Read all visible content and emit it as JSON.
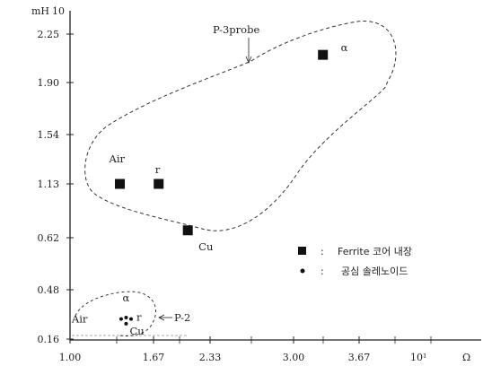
{
  "chart_data": {
    "type": "scatter",
    "y_unit": "mH",
    "x_unit": "Ω",
    "y_exponent_label": "10",
    "x_exponent_label": "10¹",
    "y_ticks": [
      "0.16",
      "0.48",
      "0.62",
      "1.13",
      "1.54",
      "1.90",
      "2.25"
    ],
    "x_ticks": [
      "1.00",
      "1.67",
      "2.33",
      "3.00",
      "3.67"
    ],
    "xlim": [
      1.0,
      4.3
    ],
    "ylim": [
      0.16,
      2.25
    ],
    "series": [
      {
        "name": "Ferrite 코어 내장",
        "marker": "square",
        "points": [
          {
            "label": "Air",
            "x": 1.4,
            "y": 1.13
          },
          {
            "label": "r",
            "x": 1.73,
            "y": 1.13
          },
          {
            "label": "Cu",
            "x": 2.07,
            "y": 0.69
          },
          {
            "label": "α",
            "x": 3.3,
            "y": 2.1
          }
        ]
      },
      {
        "name": "공심 솔레노이드",
        "marker": "dot",
        "points": [
          {
            "label": "Air",
            "x": 1.41,
            "y": 0.29
          },
          {
            "label": "α",
            "x": 1.45,
            "y": 0.3
          },
          {
            "label": "r",
            "x": 1.49,
            "y": 0.29
          },
          {
            "label": "Cu",
            "x": 1.45,
            "y": 0.26
          }
        ]
      }
    ],
    "annotations": [
      "P-3probe",
      "P-2"
    ],
    "legend_position": "right",
    "grid": false
  }
}
